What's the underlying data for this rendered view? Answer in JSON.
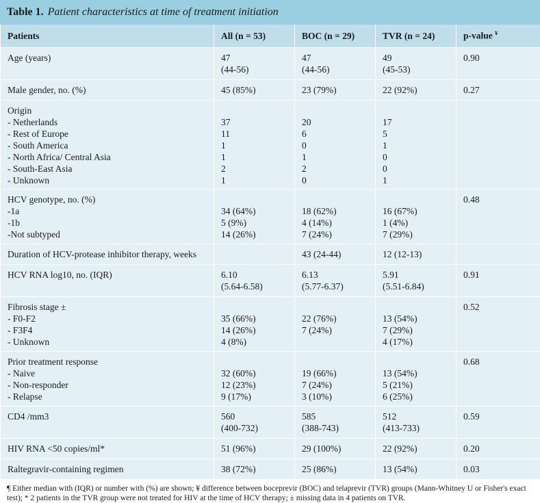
{
  "table_label": "Table 1.",
  "table_caption": "Patient characteristics at time of treatment initiation",
  "columns": [
    "Patients",
    "All (n = 53)",
    "BOC (n = 29)",
    "TVR (n = 24)",
    "p-value"
  ],
  "pvalue_marker": "¥",
  "rows": [
    {
      "label": [
        "Age (years)"
      ],
      "all": [
        "47",
        "(44-56)"
      ],
      "boc": [
        "47",
        "(44-56)"
      ],
      "tvr": [
        "49",
        "(45-53)"
      ],
      "p": "0.90"
    },
    {
      "label": [
        "Male gender, no. (%)"
      ],
      "all": [
        "45 (85%)"
      ],
      "boc": [
        "23 (79%)"
      ],
      "tvr": [
        "22 (92%)"
      ],
      "p": "0.27"
    },
    {
      "label": [
        "Origin",
        "- Netherlands",
        "- Rest of Europe",
        "- South America",
        "- North Africa/ Central Asia",
        "- South-East Asia",
        "- Unknown"
      ],
      "all": [
        "",
        "37",
        "11",
        "1",
        "1",
        "2",
        "1"
      ],
      "boc": [
        "",
        "20",
        "6",
        "0",
        "1",
        "2",
        "0"
      ],
      "tvr": [
        "",
        "17",
        "5",
        "1",
        "0",
        "0",
        "1"
      ],
      "p": ""
    },
    {
      "label": [
        "HCV genotype, no. (%)",
        "-1a",
        "-1b",
        "-Not subtyped"
      ],
      "all": [
        "",
        "34 (64%)",
        "5 (9%)",
        "14 (26%)"
      ],
      "boc": [
        "",
        "18 (62%)",
        "4 (14%)",
        "7 (24%)"
      ],
      "tvr": [
        "",
        "16 (67%)",
        "1 (4%)",
        "7 (29%)"
      ],
      "p": "0.48"
    },
    {
      "label": [
        "Duration of HCV-protease inhibitor therapy, weeks"
      ],
      "all": [
        ""
      ],
      "boc": [
        "43 (24-44)"
      ],
      "tvr": [
        "12 (12-13)"
      ],
      "p": ""
    },
    {
      "label": [
        "HCV RNA log10, no. (IQR)"
      ],
      "all": [
        "6.10",
        "(5.64-6.58)"
      ],
      "boc": [
        "6.13",
        "(5.77-6.37)"
      ],
      "tvr": [
        "5.91",
        "(5.51-6.84)"
      ],
      "p": "0.91"
    },
    {
      "label": [
        "Fibrosis stage ±",
        "- F0-F2",
        "- F3F4",
        "- Unknown"
      ],
      "all": [
        "",
        "35 (66%)",
        "14 (26%)",
        "4 (8%)"
      ],
      "boc": [
        "",
        "22 (76%)",
        "7 (24%)",
        ""
      ],
      "tvr": [
        "",
        "13 (54%)",
        "7 (29%)",
        "4 (17%)"
      ],
      "p": "0.52"
    },
    {
      "label": [
        "Prior treatment response",
        "- Naive",
        "- Non-responder",
        "- Relapse"
      ],
      "all": [
        "",
        "32 (60%)",
        "12 (23%)",
        "9 (17%)"
      ],
      "boc": [
        "",
        "19 (66%)",
        "7 (24%)",
        "3 (10%)"
      ],
      "tvr": [
        "",
        "13 (54%)",
        "5 (21%)",
        "6 (25%)"
      ],
      "p": "0.68"
    },
    {
      "label": [
        "CD4 /mm3"
      ],
      "all": [
        "560",
        "(400-732)"
      ],
      "boc": [
        "585",
        "(388-743)"
      ],
      "tvr": [
        "512",
        "(413-733)"
      ],
      "p": "0.59"
    },
    {
      "label": [
        "HIV RNA <50 copies/ml*"
      ],
      "all": [
        "51 (96%)"
      ],
      "boc": [
        "29 (100%)"
      ],
      "tvr": [
        "22 (92%)"
      ],
      "p": "0.20"
    },
    {
      "label": [
        "Raltegravir-containing regimen"
      ],
      "all": [
        "38 (72%)"
      ],
      "boc": [
        "25 (86%)"
      ],
      "tvr": [
        "13 (54%)"
      ],
      "p": "0.03"
    }
  ],
  "footnote": "¶ Either median with (IQR) or number with (%) are shown; ¥ difference between boceprevir (BOC) and telaprevir (TVR) groups (Mann-Whitney U or Fisher's exact test); * 2 patients in the TVR group were not treated for HIV at the time of HCV therapy; ± missing data in 4 patients on TVR."
}
